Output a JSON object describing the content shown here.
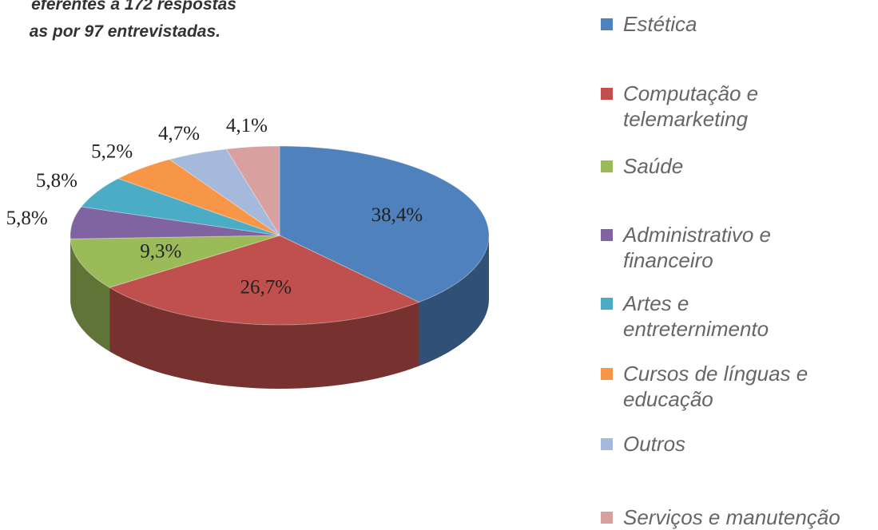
{
  "chart_data": {
    "type": "pie",
    "subtitle": [
      "eferentes a 172 respostas",
      "as por 97 entrevistadas."
    ],
    "categories": [
      "Estética",
      "Computação e\ntelemarketing",
      "Saúde",
      "Administrativo e\nfinanceiro",
      "Artes e\nentreternimento",
      "Cursos de línguas e\neducação",
      "Outros",
      "Serviços e manutenção"
    ],
    "values": [
      38.4,
      26.7,
      9.3,
      5.8,
      5.8,
      5.2,
      4.7,
      4.1
    ],
    "value_labels": [
      "38,4%",
      "26,7%",
      "9,3%",
      "5,8%",
      "5,8%",
      "5,2%",
      "4,7%",
      "4,1%"
    ],
    "colors": [
      "#4f81bd",
      "#c0504d",
      "#9bbb59",
      "#8064a2",
      "#4bacc6",
      "#f79646",
      "#a5b9dd",
      "#d9a0a0"
    ],
    "legend": "right"
  }
}
